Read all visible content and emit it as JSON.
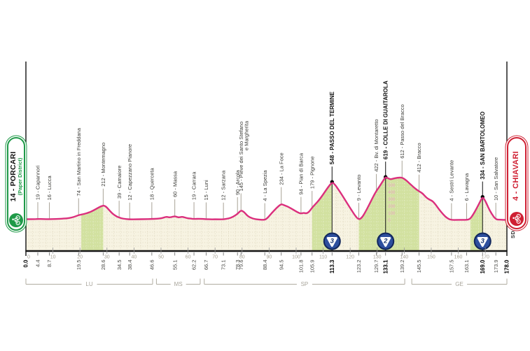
{
  "start_badge": {
    "title": "14 - PORCARI",
    "subtitle": "(Paper District)",
    "accent": "#1f9a48"
  },
  "finish_badge": {
    "title": "4 - CHIAVARI",
    "accent": "#cf2033"
  },
  "watermark": "SDS",
  "colors": {
    "line_pink": "#db2f7d",
    "area_cream": "#f7f3e2",
    "climb_green": "#d2e1a0",
    "grid_tint": "#b9b08a",
    "badge_blue_fill": "#2d4f9e",
    "badge_blue_edge": "#12275c",
    "badge_number": "#17346f",
    "axis_black": "#141414",
    "waypoint_line_gray": "#a8a296",
    "scale_gray": "#a39e91",
    "elev_scale_pink": "#eda6c6"
  },
  "chart_data": {
    "type": "area",
    "x_unit": "km",
    "y_unit": "m",
    "xlim": [
      0,
      178
    ],
    "ylim": [
      0,
      650
    ],
    "grid": true,
    "profile": [
      [
        0,
        15
      ],
      [
        3,
        16
      ],
      [
        4.4,
        19
      ],
      [
        6.5,
        17
      ],
      [
        8.7,
        16
      ],
      [
        11,
        18
      ],
      [
        14,
        24
      ],
      [
        16,
        30
      ],
      [
        18,
        50
      ],
      [
        19.5,
        74
      ],
      [
        21,
        85
      ],
      [
        23,
        105
      ],
      [
        25,
        140
      ],
      [
        27,
        185
      ],
      [
        28.6,
        212
      ],
      [
        29.5,
        200
      ],
      [
        30.5,
        160
      ],
      [
        32,
        95
      ],
      [
        33.5,
        55
      ],
      [
        34.5,
        39
      ],
      [
        36,
        22
      ],
      [
        38.4,
        12
      ],
      [
        41,
        14
      ],
      [
        44,
        16
      ],
      [
        46.6,
        18
      ],
      [
        48.5,
        22
      ],
      [
        50.5,
        30
      ],
      [
        52,
        52
      ],
      [
        53.2,
        38
      ],
      [
        55.1,
        60
      ],
      [
        56.5,
        38
      ],
      [
        57.8,
        52
      ],
      [
        59.5,
        30
      ],
      [
        61,
        24
      ],
      [
        62.2,
        19
      ],
      [
        64,
        22
      ],
      [
        66.7,
        15
      ],
      [
        69,
        13
      ],
      [
        71,
        14
      ],
      [
        73.1,
        12
      ],
      [
        75,
        25
      ],
      [
        76.5,
        45
      ],
      [
        78.3,
        90
      ],
      [
        79.6,
        145
      ],
      [
        80.8,
        118
      ],
      [
        82,
        60
      ],
      [
        84,
        22
      ],
      [
        86,
        10
      ],
      [
        88.4,
        4
      ],
      [
        89.5,
        35
      ],
      [
        91,
        105
      ],
      [
        93,
        185
      ],
      [
        94.5,
        234
      ],
      [
        95.5,
        215
      ],
      [
        97,
        195
      ],
      [
        99,
        150
      ],
      [
        100.5,
        115
      ],
      [
        101.8,
        94
      ],
      [
        102.8,
        108
      ],
      [
        103.8,
        96
      ],
      [
        104.8,
        120
      ],
      [
        105.9,
        179
      ],
      [
        107,
        225
      ],
      [
        108.5,
        290
      ],
      [
        110,
        370
      ],
      [
        111.5,
        455
      ],
      [
        113.3,
        548
      ],
      [
        114.5,
        505
      ],
      [
        116,
        420
      ],
      [
        117.5,
        330
      ],
      [
        119,
        235
      ],
      [
        120.5,
        145
      ],
      [
        122,
        55
      ],
      [
        123.2,
        9
      ],
      [
        124.3,
        35
      ],
      [
        125.5,
        110
      ],
      [
        127,
        220
      ],
      [
        128.4,
        330
      ],
      [
        129.7,
        422
      ],
      [
        131,
        490
      ],
      [
        132,
        555
      ],
      [
        133.1,
        619
      ],
      [
        134,
        600
      ],
      [
        135,
        585
      ],
      [
        136.2,
        598
      ],
      [
        137.5,
        608
      ],
      [
        139.2,
        612
      ],
      [
        140.3,
        585
      ],
      [
        141.5,
        545
      ],
      [
        142.7,
        500
      ],
      [
        144,
        455
      ],
      [
        145.5,
        412
      ],
      [
        146.8,
        385
      ],
      [
        148,
        330
      ],
      [
        149.3,
        295
      ],
      [
        150.5,
        275
      ],
      [
        151.8,
        215
      ],
      [
        153,
        150
      ],
      [
        154.5,
        80
      ],
      [
        156,
        25
      ],
      [
        157.5,
        4
      ],
      [
        159.5,
        5
      ],
      [
        161,
        6
      ],
      [
        163.1,
        6
      ],
      [
        164.3,
        15
      ],
      [
        165.5,
        80
      ],
      [
        166.8,
        170
      ],
      [
        168,
        260
      ],
      [
        169,
        334
      ],
      [
        170,
        280
      ],
      [
        171,
        190
      ],
      [
        172.3,
        95
      ],
      [
        173.9,
        10
      ],
      [
        175.5,
        8
      ],
      [
        178,
        5
      ]
    ],
    "climb_fill_ranges_km": [
      [
        20.5,
        28.6
      ],
      [
        105.9,
        113.3
      ],
      [
        123.2,
        145.5
      ],
      [
        164.5,
        169
      ]
    ],
    "waypoints": [
      {
        "km": 4.4,
        "elev": 19,
        "label": "19 - Capannori"
      },
      {
        "km": 8.7,
        "elev": 16,
        "label": "16 - Lucca"
      },
      {
        "km": 19.5,
        "elev": 74,
        "label": "74 - San Martino in Freddana"
      },
      {
        "km": 28.6,
        "elev": 212,
        "label": "212 - Montemagno"
      },
      {
        "km": 34.5,
        "elev": 39,
        "label": "39 - Camaiore"
      },
      {
        "km": 38.4,
        "elev": 12,
        "label": "12 - Capezzano Pianore"
      },
      {
        "km": 46.6,
        "elev": 18,
        "label": "18 - Querceta"
      },
      {
        "km": 55.1,
        "elev": 60,
        "label": "60 - Massa"
      },
      {
        "km": 62.2,
        "elev": 19,
        "label": "19 - Carrara"
      },
      {
        "km": 66.7,
        "elev": 15,
        "label": "15 - Luni"
      },
      {
        "km": 73.1,
        "elev": 12,
        "label": "12 - Sarzana"
      },
      {
        "km": 78.3,
        "elev": 90,
        "label": "90 - Arcola"
      },
      {
        "km": 79.6,
        "elev": 145,
        "label": "145 - Pieve dei Santo Stefano",
        "label2": "e Margherita"
      },
      {
        "km": 88.4,
        "elev": 4,
        "label": "4 - La Spezia"
      },
      {
        "km": 94.5,
        "elev": 234,
        "label": "234 - La Foce"
      },
      {
        "km": 101.8,
        "elev": 94,
        "label": "94 - Pian di Barca"
      },
      {
        "km": 105.9,
        "elev": 179,
        "label": "179 - Pignone"
      },
      {
        "km": 113.3,
        "elev": 548,
        "label": "548 - PASSO DEL TERMINE",
        "bold": true,
        "category": "3"
      },
      {
        "km": 123.2,
        "elev": 9,
        "label": "9 - Levanto"
      },
      {
        "km": 129.7,
        "elev": 422,
        "label": "422 - Bv. di Montaretto"
      },
      {
        "km": 133.1,
        "elev": 619,
        "label": "619 - COLLE DI GUAITAROLA",
        "bold": true,
        "category": "2"
      },
      {
        "km": 139.2,
        "elev": 612,
        "label": "612 - Passo del Bracco"
      },
      {
        "km": 145.5,
        "elev": 412,
        "label": "412 - Bracco"
      },
      {
        "km": 157.5,
        "elev": 4,
        "label": "4 - Sestri Levante"
      },
      {
        "km": 163.1,
        "elev": 6,
        "label": "6 - Lavagna"
      },
      {
        "km": 169.0,
        "elev": 334,
        "label": "334 - SAN BARTOLOMEO",
        "bold": true,
        "category": "3"
      },
      {
        "km": 173.9,
        "elev": 10,
        "label": "10 - San Salvatore"
      }
    ],
    "km_labels": [
      {
        "text": "0.0",
        "km": 0,
        "bold": true
      },
      {
        "text": "4.4",
        "km": 4.4
      },
      {
        "text": "8.7",
        "km": 8.7
      },
      {
        "text": "19.5",
        "km": 19.5
      },
      {
        "text": "28.6",
        "km": 28.6
      },
      {
        "text": "34.5",
        "km": 34.5
      },
      {
        "text": "38.4",
        "km": 38.4
      },
      {
        "text": "46.6",
        "km": 46.6
      },
      {
        "text": "55.1",
        "km": 55.1
      },
      {
        "text": "62.2",
        "km": 62.2
      },
      {
        "text": "66.7",
        "km": 66.7
      },
      {
        "text": "73.1",
        "km": 73.1
      },
      {
        "text": "78.3",
        "km": 78.3
      },
      {
        "text": "79.6",
        "km": 79.6
      },
      {
        "text": "88.4",
        "km": 88.4
      },
      {
        "text": "94.5",
        "km": 94.5
      },
      {
        "text": "101.8",
        "km": 101.8
      },
      {
        "text": "105.9",
        "km": 105.9
      },
      {
        "text": "113.3",
        "km": 113.3,
        "bold": true
      },
      {
        "text": "123.2",
        "km": 123.2
      },
      {
        "text": "129.7",
        "km": 129.7
      },
      {
        "text": "133.1",
        "km": 133.1,
        "bold": true
      },
      {
        "text": "139.2",
        "km": 139.2
      },
      {
        "text": "145.5",
        "km": 145.5
      },
      {
        "text": "157.5",
        "km": 157.5
      },
      {
        "text": "163.1",
        "km": 163.1
      },
      {
        "text": "169.0",
        "km": 169,
        "bold": true
      },
      {
        "text": "173.9",
        "km": 173.9
      },
      {
        "text": "178.0",
        "km": 178,
        "bold": true
      }
    ],
    "scale_ticks": [
      0,
      10,
      20,
      30,
      40,
      50,
      60,
      70,
      80,
      90,
      100,
      110,
      120,
      130,
      140,
      150,
      160,
      170
    ],
    "elevation_scale": {
      "at_km": 133.1,
      "values": [
        500,
        400,
        300,
        200,
        100,
        0
      ]
    },
    "provinces": [
      {
        "code": "LU",
        "from_km": 0,
        "to_km": 46.9
      },
      {
        "code": "MS",
        "from_km": 48.3,
        "to_km": 64.5
      },
      {
        "code": "SP",
        "from_km": 66.0,
        "to_km": 140.2
      },
      {
        "code": "GE",
        "from_km": 142.8,
        "to_km": 178
      }
    ]
  }
}
